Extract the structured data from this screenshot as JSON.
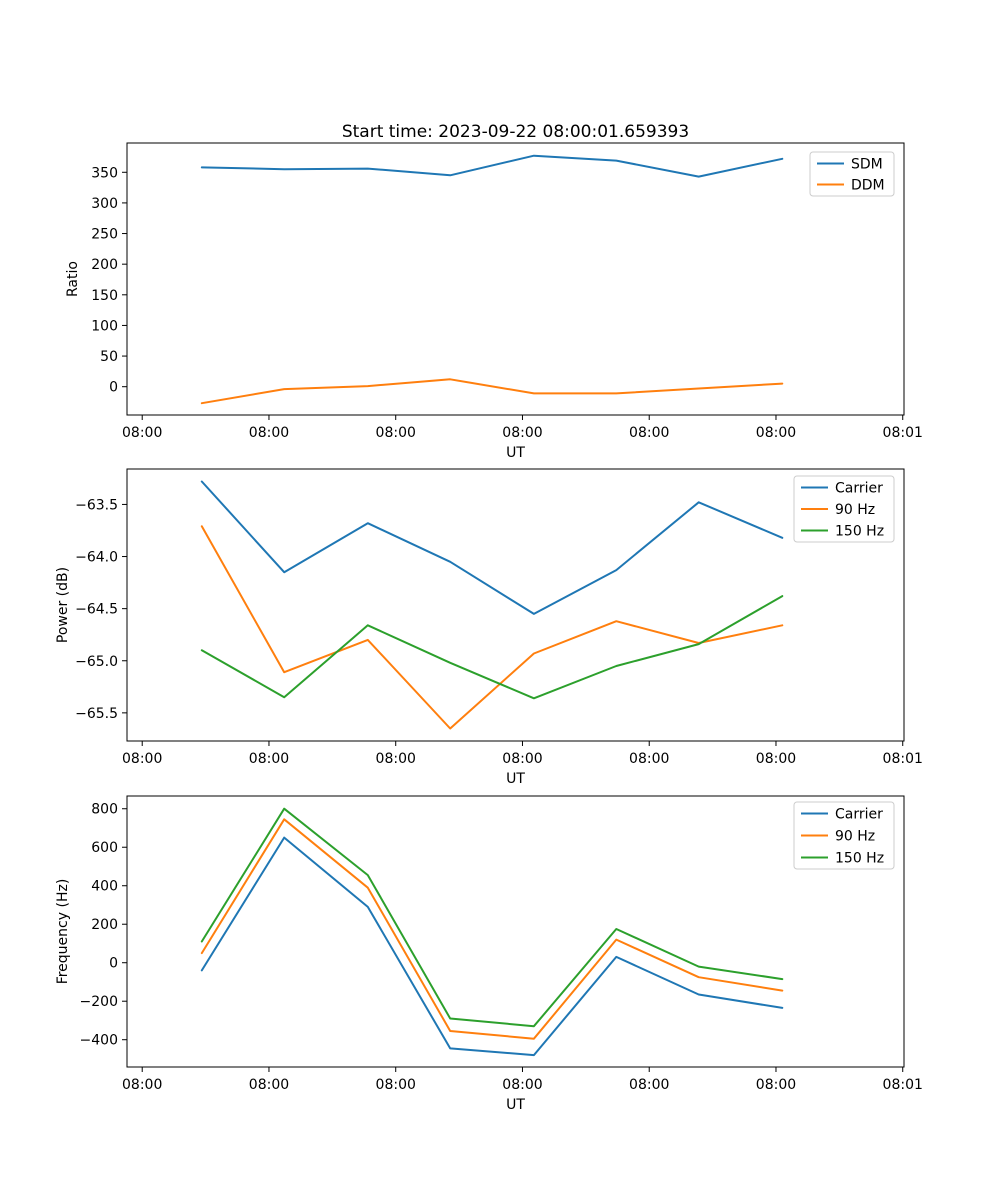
{
  "title": "Start time: 2023-09-22 08:00:01.659393",
  "x_axis": {
    "label": "UT",
    "xlim_seconds": [
      -1.2,
      60.1
    ],
    "tick_seconds": [
      0,
      10,
      20,
      30,
      40,
      50,
      60
    ],
    "tick_labels": [
      "08:00",
      "08:00",
      "08:00",
      "08:00",
      "08:00",
      "08:00",
      "08:01"
    ]
  },
  "x_seconds": [
    4.7,
    11.2,
    17.8,
    24.3,
    30.9,
    37.4,
    43.9,
    50.5
  ],
  "chart_data": [
    {
      "type": "line",
      "id": "ratio",
      "title": "Start time: 2023-09-22 08:00:01.659393",
      "xlabel": "UT",
      "ylabel": "Ratio",
      "ylim": [
        -46.2,
        397.8
      ],
      "ytick_values": [
        0,
        50,
        100,
        150,
        200,
        250,
        300,
        350
      ],
      "ytick_labels": [
        "0",
        "50",
        "100",
        "150",
        "200",
        "250",
        "300",
        "350"
      ],
      "legend_position": "upper right",
      "grid": false,
      "series": [
        {
          "name": "SDM",
          "color": "#1f77b4",
          "values": [
            358,
            355,
            356,
            345,
            377,
            369,
            343,
            372
          ]
        },
        {
          "name": "DDM",
          "color": "#ff7f0e",
          "values": [
            -27,
            -4,
            1,
            12,
            -11,
            -11,
            -3,
            5
          ]
        }
      ]
    },
    {
      "type": "line",
      "id": "power",
      "xlabel": "UT",
      "ylabel": "Power (dB)",
      "ylim": [
        -65.77,
        -63.16
      ],
      "ytick_values": [
        -65.5,
        -65.0,
        -64.5,
        -64.0,
        -63.5
      ],
      "ytick_labels": [
        "−65.5",
        "−65.0",
        "−64.5",
        "−64.0",
        "−63.5"
      ],
      "legend_position": "upper right",
      "grid": false,
      "series": [
        {
          "name": "Carrier",
          "color": "#1f77b4",
          "values": [
            -63.28,
            -64.15,
            -63.68,
            -64.05,
            -64.55,
            -64.13,
            -63.48,
            -63.82
          ]
        },
        {
          "name": "90 Hz",
          "color": "#ff7f0e",
          "values": [
            -63.71,
            -65.11,
            -64.8,
            -65.65,
            -64.93,
            -64.62,
            -64.83,
            -64.66
          ]
        },
        {
          "name": "150 Hz",
          "color": "#2ca02c",
          "values": [
            -64.9,
            -65.35,
            -64.66,
            -65.02,
            -65.36,
            -65.05,
            -64.84,
            -64.38
          ]
        }
      ]
    },
    {
      "type": "line",
      "id": "frequency",
      "xlabel": "UT",
      "ylabel": "Frequency (Hz)",
      "ylim": [
        -541.8,
        866.2
      ],
      "ytick_values": [
        -400,
        -200,
        0,
        200,
        400,
        600,
        800
      ],
      "ytick_labels": [
        "−400",
        "−200",
        "0",
        "200",
        "400",
        "600",
        "800"
      ],
      "legend_position": "upper right",
      "grid": false,
      "series": [
        {
          "name": "Carrier",
          "color": "#1f77b4",
          "values": [
            -40,
            650,
            290,
            -445,
            -480,
            30,
            -165,
            -235
          ]
        },
        {
          "name": "90 Hz",
          "color": "#ff7f0e",
          "values": [
            50,
            745,
            390,
            -355,
            -395,
            120,
            -75,
            -145
          ]
        },
        {
          "name": "150 Hz",
          "color": "#2ca02c",
          "values": [
            110,
            800,
            455,
            -290,
            -330,
            175,
            -20,
            -85
          ]
        }
      ]
    }
  ]
}
